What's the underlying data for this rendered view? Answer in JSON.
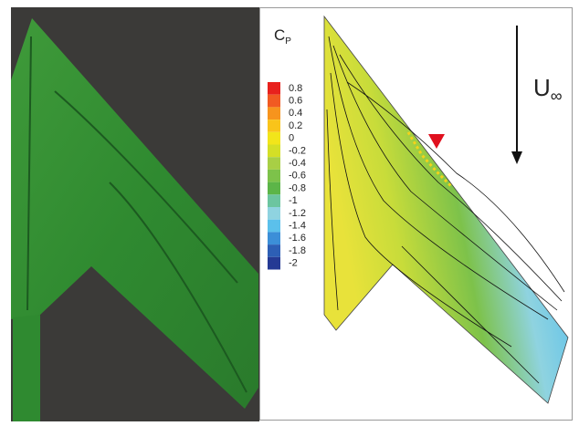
{
  "chart_data": {
    "type": "contour",
    "colorbar_title": {
      "main": "C",
      "sub": "P"
    },
    "freestream_label": {
      "main": "U",
      "sub": "∞"
    },
    "colorbar_ticks": [
      0.8,
      0.6,
      0.4,
      0.2,
      0,
      -0.2,
      -0.4,
      -0.6,
      -0.8,
      -1,
      -1.2,
      -1.4,
      -1.6,
      -1.8,
      -2
    ],
    "colorbar_colors": [
      "#e8211d",
      "#f15a22",
      "#f7941d",
      "#f9c41a",
      "#f2e51a",
      "#d4df26",
      "#a8cf45",
      "#7dc24a",
      "#5cb548",
      "#6cc5a0",
      "#8fd3e0",
      "#5bc0eb",
      "#3c8fd8",
      "#2d5fb5",
      "#253a94"
    ]
  }
}
